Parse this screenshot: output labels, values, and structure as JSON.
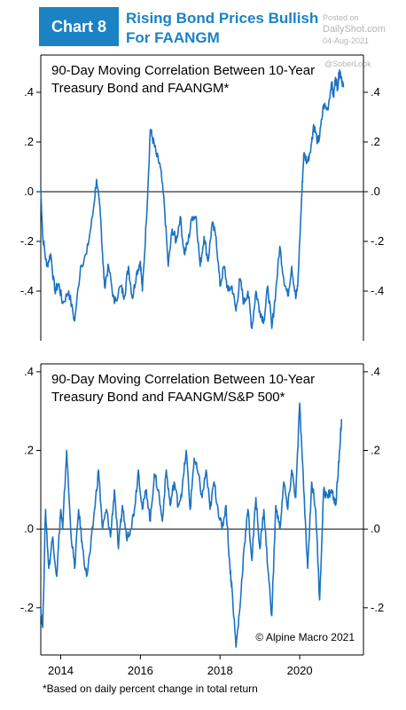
{
  "header": {
    "badge": "Chart 8",
    "title_lines": [
      "Rising Bond Prices Bullish",
      "For FAANGM"
    ]
  },
  "watermark": {
    "posted_on": "Posted on",
    "site": "DailyShot.com",
    "date": "04-Aug-2021",
    "handle": "@SoberLook"
  },
  "colors": {
    "accent": "#1b82c4",
    "line": "#1b72c0",
    "axis": "#000000"
  },
  "footnote": "*Based on daily percent change in total return",
  "copyright": "© Alpine Macro 2021",
  "chart_data": [
    {
      "type": "line",
      "title": [
        "90-Day Moving Correlation Between 10-Year",
        "Treasury Bond and FAANGM*"
      ],
      "ylim": [
        -0.6,
        0.55
      ],
      "yticks": [
        0.4,
        0.2,
        0.0,
        -0.2,
        -0.4
      ],
      "ytick_labels": [
        ".4",
        ".2",
        ".0",
        "-.2",
        "-.4"
      ],
      "xlim": [
        2013.5,
        2021.6
      ],
      "series": [
        {
          "x": [
            2013.5,
            2013.55,
            2013.65,
            2013.75,
            2013.85,
            2013.95,
            2014.05,
            2014.2,
            2014.35,
            2014.5,
            2014.65,
            2014.8,
            2014.9,
            2015.0,
            2015.05,
            2015.1,
            2015.2,
            2015.35,
            2015.5,
            2015.6,
            2015.7,
            2015.8,
            2015.9,
            2016.0,
            2016.05,
            2016.15,
            2016.25,
            2016.3,
            2016.4,
            2016.5,
            2016.6,
            2016.7,
            2016.8,
            2016.9,
            2017.0,
            2017.1,
            2017.2,
            2017.3,
            2017.4,
            2017.5,
            2017.6,
            2017.7,
            2017.8,
            2017.9,
            2018.0,
            2018.1,
            2018.2,
            2018.3,
            2018.4,
            2018.5,
            2018.6,
            2018.7,
            2018.8,
            2018.9,
            2019.0,
            2019.1,
            2019.2,
            2019.3,
            2019.4,
            2019.5,
            2019.6,
            2019.7,
            2019.8,
            2019.9,
            2019.95,
            2020.05,
            2020.1,
            2020.2,
            2020.3,
            2020.35,
            2020.45,
            2020.5,
            2020.6,
            2020.7,
            2020.8,
            2020.85,
            2020.9,
            2020.95,
            2021.0,
            2021.05,
            2021.1
          ],
          "y": [
            0.01,
            -0.18,
            -0.3,
            -0.25,
            -0.4,
            -0.37,
            -0.45,
            -0.4,
            -0.52,
            -0.3,
            -0.25,
            -0.1,
            0.05,
            -0.1,
            -0.25,
            -0.38,
            -0.3,
            -0.45,
            -0.38,
            -0.42,
            -0.3,
            -0.43,
            -0.33,
            -0.28,
            -0.4,
            -0.12,
            0.25,
            0.22,
            0.15,
            0.1,
            -0.05,
            -0.3,
            -0.15,
            -0.2,
            -0.1,
            -0.25,
            -0.2,
            -0.1,
            -0.1,
            -0.3,
            -0.18,
            -0.28,
            -0.13,
            -0.18,
            -0.38,
            -0.3,
            -0.4,
            -0.38,
            -0.48,
            -0.35,
            -0.45,
            -0.4,
            -0.55,
            -0.4,
            -0.48,
            -0.52,
            -0.38,
            -0.55,
            -0.4,
            -0.22,
            -0.35,
            -0.42,
            -0.3,
            -0.43,
            -0.38,
            -0.02,
            0.15,
            0.12,
            0.2,
            0.27,
            0.2,
            0.22,
            0.35,
            0.33,
            0.44,
            0.38,
            0.46,
            0.42,
            0.49,
            0.46,
            0.42
          ]
        }
      ]
    },
    {
      "type": "line",
      "title": [
        "90-Day Moving Correlation Between 10-Year",
        "Treasury Bond and FAANGM/S&P 500*"
      ],
      "ylim": [
        -0.32,
        0.42
      ],
      "yticks": [
        0.4,
        0.2,
        0.0,
        -0.2
      ],
      "ytick_labels": [
        ".4",
        ".2",
        ".0",
        "-.2"
      ],
      "xlim": [
        2013.5,
        2021.6
      ],
      "xticks": [
        2014,
        2016,
        2018,
        2020
      ],
      "xtick_labels": [
        "2014",
        "2016",
        "2018",
        "2020"
      ],
      "series": [
        {
          "x": [
            2013.5,
            2013.55,
            2013.62,
            2013.7,
            2013.8,
            2013.9,
            2014.0,
            2014.05,
            2014.15,
            2014.25,
            2014.35,
            2014.45,
            2014.55,
            2014.65,
            2014.75,
            2014.85,
            2014.95,
            2015.05,
            2015.15,
            2015.25,
            2015.35,
            2015.45,
            2015.55,
            2015.65,
            2015.75,
            2015.85,
            2015.95,
            2016.05,
            2016.15,
            2016.25,
            2016.35,
            2016.45,
            2016.55,
            2016.65,
            2016.75,
            2016.85,
            2016.95,
            2017.05,
            2017.15,
            2017.25,
            2017.35,
            2017.45,
            2017.55,
            2017.65,
            2017.75,
            2017.85,
            2017.95,
            2018.05,
            2018.15,
            2018.25,
            2018.3,
            2018.4,
            2018.5,
            2018.6,
            2018.7,
            2018.8,
            2018.9,
            2019.0,
            2019.1,
            2019.2,
            2019.3,
            2019.4,
            2019.5,
            2019.6,
            2019.7,
            2019.8,
            2019.9,
            2020.0,
            2020.1,
            2020.2,
            2020.3,
            2020.4,
            2020.5,
            2020.6,
            2020.7,
            2020.8,
            2020.9,
            2020.95,
            2021.0,
            2021.05
          ],
          "y": [
            -0.2,
            -0.25,
            0.05,
            -0.1,
            -0.02,
            -0.12,
            0.05,
            0.0,
            0.2,
            0.0,
            -0.1,
            0.05,
            -0.05,
            -0.12,
            -0.05,
            0.05,
            0.15,
            0.0,
            0.05,
            -0.02,
            0.1,
            -0.05,
            0.06,
            -0.02,
            0.0,
            0.05,
            0.15,
            0.05,
            0.1,
            0.02,
            0.14,
            0.1,
            0.02,
            0.15,
            0.06,
            0.12,
            0.06,
            0.1,
            0.2,
            0.05,
            0.18,
            0.14,
            0.08,
            0.15,
            0.05,
            0.12,
            0.05,
            0.0,
            0.06,
            -0.1,
            -0.15,
            -0.3,
            -0.2,
            -0.05,
            0.05,
            -0.08,
            0.08,
            -0.05,
            0.05,
            -0.1,
            -0.22,
            0.06,
            0.0,
            0.12,
            0.05,
            0.15,
            0.08,
            0.32,
            0.1,
            -0.1,
            0.12,
            0.05,
            -0.18,
            0.1,
            0.08,
            0.1,
            0.06,
            0.12,
            0.2,
            0.28
          ]
        }
      ]
    }
  ]
}
